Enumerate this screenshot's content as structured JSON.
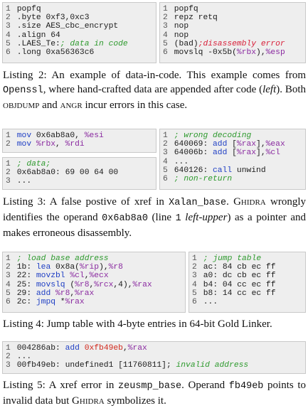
{
  "listings": [
    {
      "panels": [
        {
          "lines": [
            {
              "n": "1",
              "tokens": [
                [
                  "plain",
                  "popfq"
                ]
              ]
            },
            {
              "n": "2",
              "tokens": [
                [
                  "plain",
                  ".byte 0xf3,0xc3"
                ]
              ]
            },
            {
              "n": "3",
              "tokens": [
                [
                  "plain",
                  ".size AES_cbc_encrypt"
                ]
              ]
            },
            {
              "n": "4",
              "tokens": [
                [
                  "plain",
                  ".align 64"
                ]
              ]
            },
            {
              "n": "5",
              "tokens": [
                [
                  "plain",
                  ".LAES_Te:"
                ],
                [
                  "cm",
                  "; data in code"
                ]
              ]
            },
            {
              "n": "6",
              "tokens": [
                [
                  "plain",
                  ".long 0xa56363c6"
                ]
              ]
            }
          ]
        },
        {
          "lines": [
            {
              "n": "1",
              "tokens": [
                [
                  "plain",
                  "popfq"
                ]
              ]
            },
            {
              "n": "2",
              "tokens": [
                [
                  "plain",
                  "repz retq"
                ]
              ]
            },
            {
              "n": "3",
              "tokens": [
                [
                  "plain",
                  "nop"
                ]
              ]
            },
            {
              "n": "4",
              "tokens": [
                [
                  "plain",
                  "nop"
                ]
              ]
            },
            {
              "n": "5",
              "tokens": [
                [
                  "plain",
                  "(bad)"
                ],
                [
                  "err",
                  ";disassembly error"
                ]
              ]
            },
            {
              "n": "6",
              "tokens": [
                [
                  "plain",
                  "movslq -0x5b("
                ],
                [
                  "reg",
                  "%rbx"
                ],
                [
                  "plain",
                  "),"
                ],
                [
                  "reg",
                  "%esp"
                ]
              ]
            }
          ]
        }
      ],
      "caption": [
        {
          "t": "t",
          "v": "Listing 2: An example of data-in-code. This example comes from "
        },
        {
          "t": "m",
          "v": "Openssl"
        },
        {
          "t": "t",
          "v": ", where hand-crafted data are appended after code ("
        },
        {
          "t": "i",
          "v": "left"
        },
        {
          "t": "t",
          "v": "). Both "
        },
        {
          "t": "s",
          "v": "objdump"
        },
        {
          "t": "t",
          "v": " and "
        },
        {
          "t": "s",
          "v": "angr"
        },
        {
          "t": "t",
          "v": " incur errors in this case."
        }
      ]
    },
    {
      "panels": [
        {
          "lines": [
            {
              "n": "1",
              "tokens": [
                [
                  "kw",
                  "mov"
                ],
                [
                  "plain",
                  " 0x6ab8a0, "
                ],
                [
                  "reg",
                  "%esi"
                ]
              ]
            },
            {
              "n": "2",
              "tokens": [
                [
                  "kw",
                  "mov"
                ],
                [
                  "plain",
                  " "
                ],
                [
                  "reg",
                  "%rbx"
                ],
                [
                  "plain",
                  ", "
                ],
                [
                  "reg",
                  "%rdi"
                ]
              ]
            }
          ]
        },
        {
          "lines": [
            {
              "n": "1",
              "tokens": [
                [
                  "cm",
                  "; data;"
                ]
              ]
            },
            {
              "n": "2",
              "tokens": [
                [
                  "plain",
                  "0x6ab8a0: 69 00 64 00"
                ]
              ]
            },
            {
              "n": "3",
              "tokens": [
                [
                  "plain",
                  "..."
                ]
              ]
            }
          ]
        },
        {
          "lines": [
            {
              "n": "1",
              "tokens": [
                [
                  "cm",
                  "; wrong decoding"
                ]
              ]
            },
            {
              "n": "2",
              "tokens": [
                [
                  "plain",
                  "640069: "
                ],
                [
                  "kw",
                  "add"
                ],
                [
                  "plain",
                  " ["
                ],
                [
                  "reg",
                  "%rax"
                ],
                [
                  "plain",
                  "],"
                ],
                [
                  "reg",
                  "%eax"
                ]
              ]
            },
            {
              "n": "3",
              "tokens": [
                [
                  "plain",
                  "64006b: "
                ],
                [
                  "kw",
                  "add"
                ],
                [
                  "plain",
                  " ["
                ],
                [
                  "reg",
                  "%rax"
                ],
                [
                  "plain",
                  "],"
                ],
                [
                  "reg",
                  "%cl"
                ]
              ]
            },
            {
              "n": "4",
              "tokens": [
                [
                  "plain",
                  "..."
                ]
              ]
            },
            {
              "n": "5",
              "tokens": [
                [
                  "plain",
                  "640126: "
                ],
                [
                  "kw",
                  "call"
                ],
                [
                  "plain",
                  " unwind"
                ]
              ]
            },
            {
              "n": "6",
              "tokens": [
                [
                  "cm",
                  "; non-return"
                ]
              ]
            }
          ]
        }
      ],
      "caption": [
        {
          "t": "t",
          "v": "Listing 3: A false postive of xref in "
        },
        {
          "t": "m",
          "v": "Xalan_base"
        },
        {
          "t": "t",
          "v": ". G"
        },
        {
          "t": "s",
          "v": "hidra"
        },
        {
          "t": "t",
          "v": " wrongly identifies the operand "
        },
        {
          "t": "m",
          "v": "0x6ab8a0"
        },
        {
          "t": "t",
          "v": " (line "
        },
        {
          "t": "m",
          "v": "1"
        },
        {
          "t": "t",
          "v": " "
        },
        {
          "t": "i",
          "v": "left-upper"
        },
        {
          "t": "t",
          "v": ") as a pointer and makes erroneous disassembly."
        }
      ]
    },
    {
      "panels": [
        {
          "lines": [
            {
              "n": "1",
              "tokens": [
                [
                  "cm",
                  "; load base address"
                ]
              ]
            },
            {
              "n": "2",
              "tokens": [
                [
                  "plain",
                  "1b: "
                ],
                [
                  "kw",
                  "lea"
                ],
                [
                  "plain",
                  " 0x8a("
                ],
                [
                  "reg",
                  "%rip"
                ],
                [
                  "plain",
                  "),"
                ],
                [
                  "reg",
                  "%r8"
                ]
              ]
            },
            {
              "n": "3",
              "tokens": [
                [
                  "plain",
                  "22: "
                ],
                [
                  "kw",
                  "movzbl"
                ],
                [
                  "plain",
                  " "
                ],
                [
                  "reg",
                  "%cl"
                ],
                [
                  "plain",
                  ","
                ],
                [
                  "reg",
                  "%ecx"
                ]
              ]
            },
            {
              "n": "4",
              "tokens": [
                [
                  "plain",
                  "25: "
                ],
                [
                  "kw",
                  "movslq"
                ],
                [
                  "plain",
                  " ("
                ],
                [
                  "reg",
                  "%r8"
                ],
                [
                  "plain",
                  ","
                ],
                [
                  "reg",
                  "%rcx"
                ],
                [
                  "plain",
                  ",4),"
                ],
                [
                  "reg",
                  "%rax"
                ]
              ]
            },
            {
              "n": "5",
              "tokens": [
                [
                  "plain",
                  "29: "
                ],
                [
                  "kw",
                  "add"
                ],
                [
                  "plain",
                  " "
                ],
                [
                  "reg",
                  "%r8"
                ],
                [
                  "plain",
                  ","
                ],
                [
                  "reg",
                  "%rax"
                ]
              ]
            },
            {
              "n": "6",
              "tokens": [
                [
                  "plain",
                  "2c: "
                ],
                [
                  "kw",
                  "jmpq"
                ],
                [
                  "plain",
                  " *"
                ],
                [
                  "reg",
                  "%rax"
                ]
              ]
            }
          ]
        },
        {
          "lines": [
            {
              "n": "1",
              "tokens": [
                [
                  "cm",
                  "; jump table"
                ]
              ]
            },
            {
              "n": "2",
              "tokens": [
                [
                  "plain",
                  "ac: 84 cb ec ff"
                ]
              ]
            },
            {
              "n": "3",
              "tokens": [
                [
                  "plain",
                  "a0: dc cb ec ff"
                ]
              ]
            },
            {
              "n": "4",
              "tokens": [
                [
                  "plain",
                  "b4: 04 cc ec ff"
                ]
              ]
            },
            {
              "n": "5",
              "tokens": [
                [
                  "plain",
                  "b8: 14 cc ec ff"
                ]
              ]
            },
            {
              "n": "6",
              "tokens": [
                [
                  "plain",
                  "..."
                ]
              ]
            }
          ]
        }
      ],
      "caption": [
        {
          "t": "t",
          "v": "Listing 4: Jump table with 4-byte entries in 64-bit Gold Linker."
        }
      ]
    },
    {
      "panels": [
        {
          "lines": [
            {
              "n": "1",
              "tokens": [
                [
                  "plain",
                  "004286ab: "
                ],
                [
                  "kw",
                  "add"
                ],
                [
                  "plain",
                  " "
                ],
                [
                  "num",
                  "0xfb49eb"
                ],
                [
                  "plain",
                  ","
                ],
                [
                  "reg",
                  "%rax"
                ]
              ]
            },
            {
              "n": "2",
              "tokens": [
                [
                  "plain",
                  "..."
                ]
              ]
            },
            {
              "n": "3",
              "tokens": [
                [
                  "plain",
                  "00fb49eb: undefined1 [11760811]; "
                ],
                [
                  "cm",
                  "invalid address"
                ]
              ]
            }
          ]
        }
      ],
      "caption": [
        {
          "t": "t",
          "v": "Listing 5: A xref error in "
        },
        {
          "t": "m",
          "v": "zeusmp_base"
        },
        {
          "t": "t",
          "v": ". Operand "
        },
        {
          "t": "m",
          "v": "fb49eb"
        },
        {
          "t": "t",
          "v": " points to invalid data but G"
        },
        {
          "t": "s",
          "v": "hidra"
        },
        {
          "t": "t",
          "v": " symbolizes it."
        }
      ]
    }
  ]
}
